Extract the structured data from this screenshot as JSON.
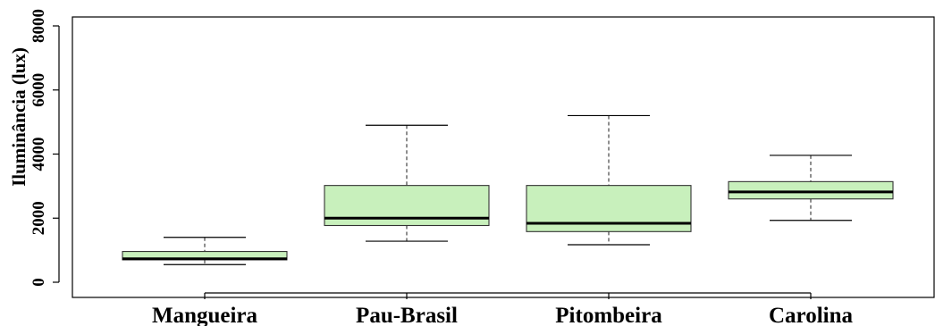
{
  "chart_data": {
    "type": "boxplot",
    "title": "",
    "xlabel": "",
    "ylabel": "Iluminância (lux)",
    "ylim": [
      0,
      8000
    ],
    "yticks": [
      0,
      2000,
      4000,
      6000,
      8000
    ],
    "categories": [
      "Mangueira",
      "Pau-Brasil",
      "Pitombeira",
      "Carolina"
    ],
    "box_color": "#c8f0bc",
    "boxes": [
      {
        "label": "Mangueira",
        "min": 550,
        "q1": 700,
        "median": 730,
        "q3": 960,
        "max": 1400
      },
      {
        "label": "Pau-Brasil",
        "min": 1280,
        "q1": 1770,
        "median": 2000,
        "q3": 3020,
        "max": 4900
      },
      {
        "label": "Pitombeira",
        "min": 1170,
        "q1": 1580,
        "median": 1840,
        "q3": 3020,
        "max": 5200
      },
      {
        "label": "Carolina",
        "min": 1930,
        "q1": 2600,
        "median": 2820,
        "q3": 3140,
        "max": 3960
      }
    ],
    "grid": false,
    "legend": "none"
  }
}
